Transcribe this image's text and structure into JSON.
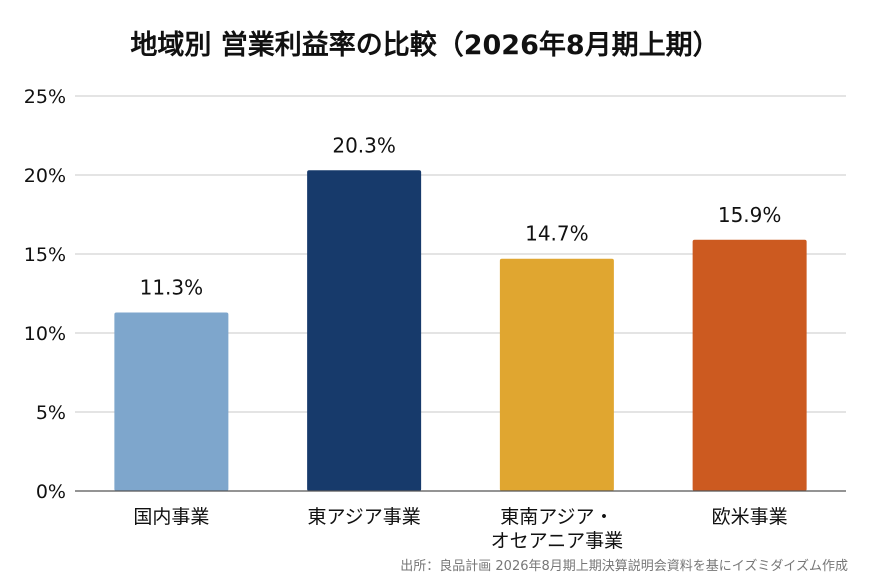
{
  "chart_data": {
    "type": "bar",
    "title": "地域別 営業利益率の比較（2026年8月期上期）",
    "categories": [
      [
        "国内事業"
      ],
      [
        "東アジア事業"
      ],
      [
        "東南アジア・",
        "オセアニア事業"
      ],
      [
        "欧米事業"
      ]
    ],
    "values": [
      11.3,
      20.3,
      14.7,
      15.9
    ],
    "data_labels": [
      "11.3%",
      "20.3%",
      "14.7%",
      "15.9%"
    ],
    "colors": [
      "#7ea6cc",
      "#173a6b",
      "#e0a630",
      "#cc5a20"
    ],
    "ylim": [
      0,
      25
    ],
    "yticks": [
      0,
      5,
      10,
      15,
      20,
      25
    ],
    "ytick_labels": [
      "0%",
      "5%",
      "10%",
      "15%",
      "20%",
      "25%"
    ],
    "xlabel": "",
    "ylabel": "",
    "grid": true,
    "legend": "none",
    "source": "出所：良品計画 2026年8月期上期決算説明会資料を基にイズミダイズム作成"
  }
}
